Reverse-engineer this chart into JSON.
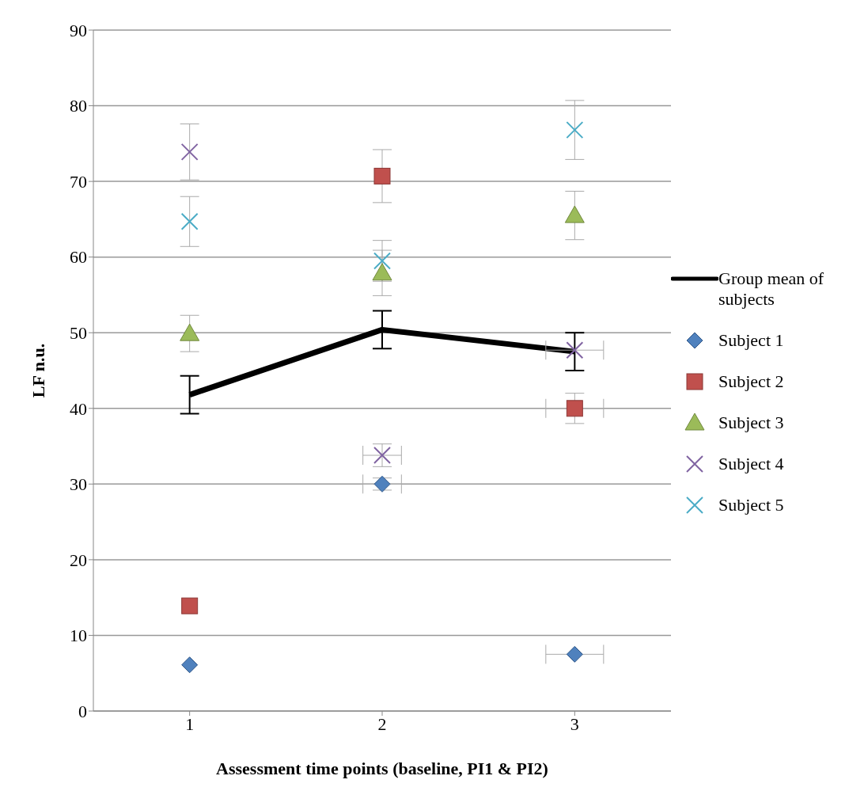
{
  "chart_data": {
    "type": "scatter",
    "xlabel": "Assessment time points (baseline, PI1 & PI2)",
    "ylabel": "LF n.u.",
    "x": [
      1,
      2,
      3
    ],
    "xlim": [
      0.5,
      3.5
    ],
    "xticks": [
      1,
      2,
      3
    ],
    "ylim": [
      0,
      90
    ],
    "yticks": [
      0,
      10,
      20,
      30,
      40,
      50,
      60,
      70,
      80,
      90
    ],
    "grid": "y",
    "legend": "right",
    "series": [
      {
        "name": "Group mean of subjects",
        "type": "line",
        "color": "#000000",
        "marker": "none",
        "line_style": "solid",
        "values": [
          41.8,
          50.4,
          47.5
        ],
        "errors": [
          2.5,
          2.5,
          2.5
        ]
      },
      {
        "name": "Subject 1",
        "color": "#4f81bd",
        "marker": "diamond",
        "values": [
          6.1,
          30.0,
          7.5
        ],
        "errors": [
          null,
          0.8,
          null
        ],
        "xerrors": [
          null,
          0.1,
          0.15
        ]
      },
      {
        "name": "Subject 2",
        "color": "#c0504d",
        "marker": "square",
        "values": [
          13.9,
          70.7,
          40.0
        ],
        "errors": [
          null,
          3.5,
          2
        ],
        "xerrors": [
          null,
          null,
          0.15
        ]
      },
      {
        "name": "Subject 3",
        "color": "#9bbb59",
        "marker": "triangle",
        "values": [
          49.9,
          57.9,
          65.5
        ],
        "errors": [
          2.4,
          3,
          3.2
        ]
      },
      {
        "name": "Subject 4",
        "color": "#8064a2",
        "marker": "cross",
        "values": [
          73.9,
          33.8,
          47.7
        ],
        "errors": [
          3.7,
          1.5,
          null
        ],
        "xerrors": [
          null,
          0.1,
          0.15
        ]
      },
      {
        "name": "Subject 5",
        "color": "#4bacc6",
        "marker": "cross",
        "values": [
          64.7,
          59.5,
          76.8
        ],
        "errors": [
          3.3,
          2.7,
          3.9
        ]
      }
    ]
  }
}
